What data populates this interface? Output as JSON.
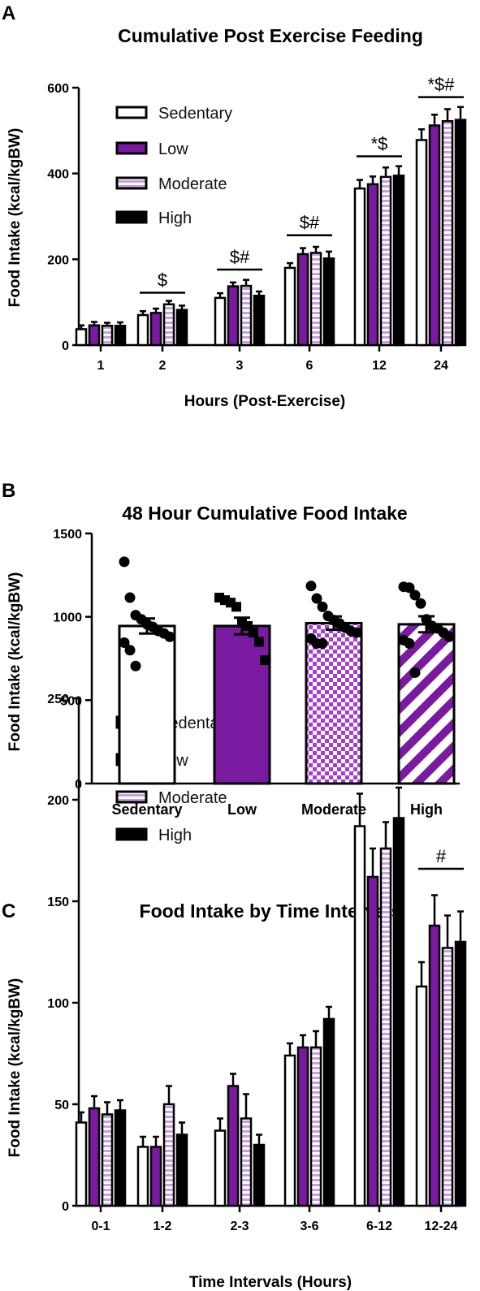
{
  "colors": {
    "purple": "#7a1aa0",
    "black": "#000000",
    "white": "#ffffff"
  },
  "panels": [
    {
      "letter": "A"
    },
    {
      "letter": "B"
    },
    {
      "letter": "C"
    }
  ],
  "chart_data": [
    {
      "type": "bar",
      "panel": "A",
      "title": "Cumulative Post Exercise Feeding",
      "xlabel": "Hours (Post-Exercise)",
      "ylabel": "Food Intake (kcal/kgBW)",
      "ylim": [
        0,
        600
      ],
      "yticks": [
        0,
        200,
        400,
        600
      ],
      "categories": [
        "1",
        "2",
        "3",
        "6",
        "12",
        "24"
      ],
      "legend": {
        "position": "top-left",
        "entries": [
          "Sedentary",
          "Low",
          "Moderate",
          "High"
        ]
      },
      "series": [
        {
          "name": "Sedentary",
          "pattern": "white",
          "values": [
            37,
            70,
            110,
            180,
            365,
            478
          ],
          "errors": [
            9,
            9,
            11,
            11,
            20,
            25
          ]
        },
        {
          "name": "Low",
          "pattern": "purple",
          "values": [
            46,
            75,
            137,
            212,
            375,
            512
          ],
          "errors": [
            8,
            10,
            9,
            14,
            18,
            25
          ]
        },
        {
          "name": "Moderate",
          "pattern": "stripe-h",
          "values": [
            45,
            95,
            138,
            215,
            392,
            522
          ],
          "errors": [
            7,
            8,
            14,
            14,
            22,
            28
          ]
        },
        {
          "name": "High",
          "pattern": "black",
          "values": [
            45,
            82,
            115,
            202,
            395,
            525
          ],
          "errors": [
            8,
            10,
            10,
            16,
            22,
            30
          ]
        }
      ],
      "annotations": [
        {
          "text": "$",
          "category": "2",
          "y": 122
        },
        {
          "text": "$#",
          "category": "3",
          "y": 176
        },
        {
          "text": "$#",
          "category": "6",
          "y": 256
        },
        {
          "text": "*$",
          "category": "12",
          "y": 440
        },
        {
          "text": "*$#",
          "category": "24",
          "y": 578
        }
      ]
    },
    {
      "type": "bar",
      "panel": "B",
      "title": "48 Hour Cumulative Food Intake",
      "xlabel": "",
      "ylabel": "Food Intake (kcal/kgBW)",
      "ylim": [
        0,
        1500
      ],
      "yticks": [
        0,
        500,
        1000,
        1500
      ],
      "categories": [
        "Sedentary",
        "Low",
        "Moderate",
        "High"
      ],
      "series": [
        {
          "name": "Sedentary",
          "pattern": "white",
          "value": 945,
          "error": 45,
          "marker": "circle",
          "points": [
            1330,
            1115,
            1010,
            985,
            955,
            940,
            915,
            900,
            880,
            845,
            800,
            705
          ]
        },
        {
          "name": "Low",
          "pattern": "purple",
          "value": 945,
          "error": 50,
          "marker": "square",
          "points": [
            1115,
            1100,
            1085,
            1060,
            965,
            945,
            905,
            850,
            740
          ]
        },
        {
          "name": "Moderate",
          "pattern": "checker",
          "value": 962,
          "error": 40,
          "marker": "circle",
          "points": [
            1185,
            1110,
            1060,
            1005,
            980,
            960,
            935,
            915,
            905,
            870,
            840,
            840
          ]
        },
        {
          "name": "High",
          "pattern": "diag",
          "value": 955,
          "error": 48,
          "marker": "circle",
          "points": [
            1180,
            1175,
            1130,
            1080,
            985,
            945,
            930,
            905,
            880,
            860,
            840,
            665
          ]
        }
      ]
    },
    {
      "type": "bar",
      "panel": "C",
      "title": "Food Intake by Time Intervals",
      "xlabel": "Time Intervals (Hours)",
      "ylabel": "Food Intake (kcal/kgBW)",
      "ylim": [
        0,
        250
      ],
      "yticks": [
        0,
        50,
        100,
        150,
        200,
        250
      ],
      "categories": [
        "0-1",
        "1-2",
        "2-3",
        "3-6",
        "6-12",
        "12-24"
      ],
      "legend": {
        "position": "top-left",
        "entries": [
          "Sedentary",
          "Low",
          "Moderate",
          "High"
        ]
      },
      "series": [
        {
          "name": "Sedentary",
          "pattern": "white",
          "values": [
            41,
            29,
            37,
            74,
            187,
            108
          ],
          "errors": [
            5,
            5,
            6,
            6,
            16,
            12
          ]
        },
        {
          "name": "Low",
          "pattern": "purple",
          "values": [
            48,
            29,
            59,
            78,
            162,
            138
          ],
          "errors": [
            6,
            5,
            6,
            6,
            14,
            15
          ]
        },
        {
          "name": "Moderate",
          "pattern": "stripe-h",
          "values": [
            45,
            50,
            43,
            78,
            176,
            127
          ],
          "errors": [
            6,
            9,
            12,
            8,
            13,
            16
          ]
        },
        {
          "name": "High",
          "pattern": "black",
          "values": [
            47,
            35,
            30,
            92,
            191,
            130
          ],
          "errors": [
            5,
            6,
            5,
            6,
            15,
            15
          ]
        }
      ],
      "annotations": [
        {
          "text": "#",
          "category": "12-24",
          "y": 166
        }
      ]
    }
  ]
}
